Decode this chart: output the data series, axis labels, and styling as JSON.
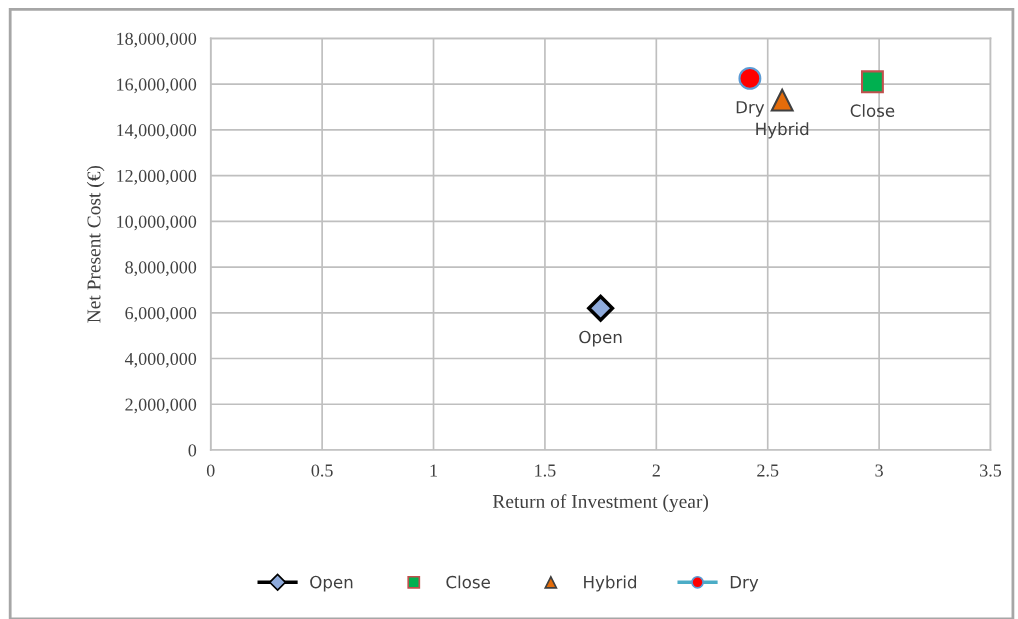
{
  "chart_data": {
    "type": "scatter",
    "xlabel": "Return of Investment (year)",
    "ylabel": "Net Present Cost (€)",
    "series": [
      {
        "name": "Open",
        "type": "line",
        "marker": "diamond",
        "color": "#8eaadb",
        "x": [
          1.75
        ],
        "values": [
          6200000
        ]
      },
      {
        "name": "Close",
        "marker": "square",
        "color": "#00b050",
        "x": [
          2.97
        ],
        "values": [
          16100000
        ]
      },
      {
        "name": "Hybrid",
        "marker": "triangle",
        "color": "#e46c0a",
        "x": [
          2.565
        ],
        "values": [
          15300000
        ]
      },
      {
        "name": "Dry",
        "type": "line",
        "marker": "circle",
        "color": "#ff0000",
        "x": [
          2.42
        ],
        "values": [
          16250000
        ]
      }
    ],
    "annotations": [
      {
        "text": "Open",
        "x": 1.75,
        "y": 6200000
      },
      {
        "text": "Close",
        "x": 2.97,
        "y": 16100000
      },
      {
        "text": "Hybrid",
        "x": 2.565,
        "y": 15300000
      },
      {
        "text": "Dry",
        "x": 2.42,
        "y": 16250000
      }
    ],
    "xlim": [
      0,
      3.5
    ],
    "xticks": [
      0,
      0.5,
      1,
      1.5,
      2,
      2.5,
      3,
      3.5
    ],
    "ylim": [
      0,
      18000000
    ],
    "yticks": [
      {
        "value": 0,
        "label": "0"
      },
      {
        "value": 2000000,
        "label": "2,000,000"
      },
      {
        "value": 4000000,
        "label": "4,000,000"
      },
      {
        "value": 6000000,
        "label": "6,000,000"
      },
      {
        "value": 8000000,
        "label": "8,000,000"
      },
      {
        "value": 10000000,
        "label": "10,000,000"
      },
      {
        "value": 12000000,
        "label": "12,000,000"
      },
      {
        "value": 14000000,
        "label": "14,000,000"
      },
      {
        "value": 16000000,
        "label": "16,000,000"
      },
      {
        "value": 18000000,
        "label": "18,000,000"
      }
    ],
    "grid": true,
    "legend": "bottom"
  }
}
